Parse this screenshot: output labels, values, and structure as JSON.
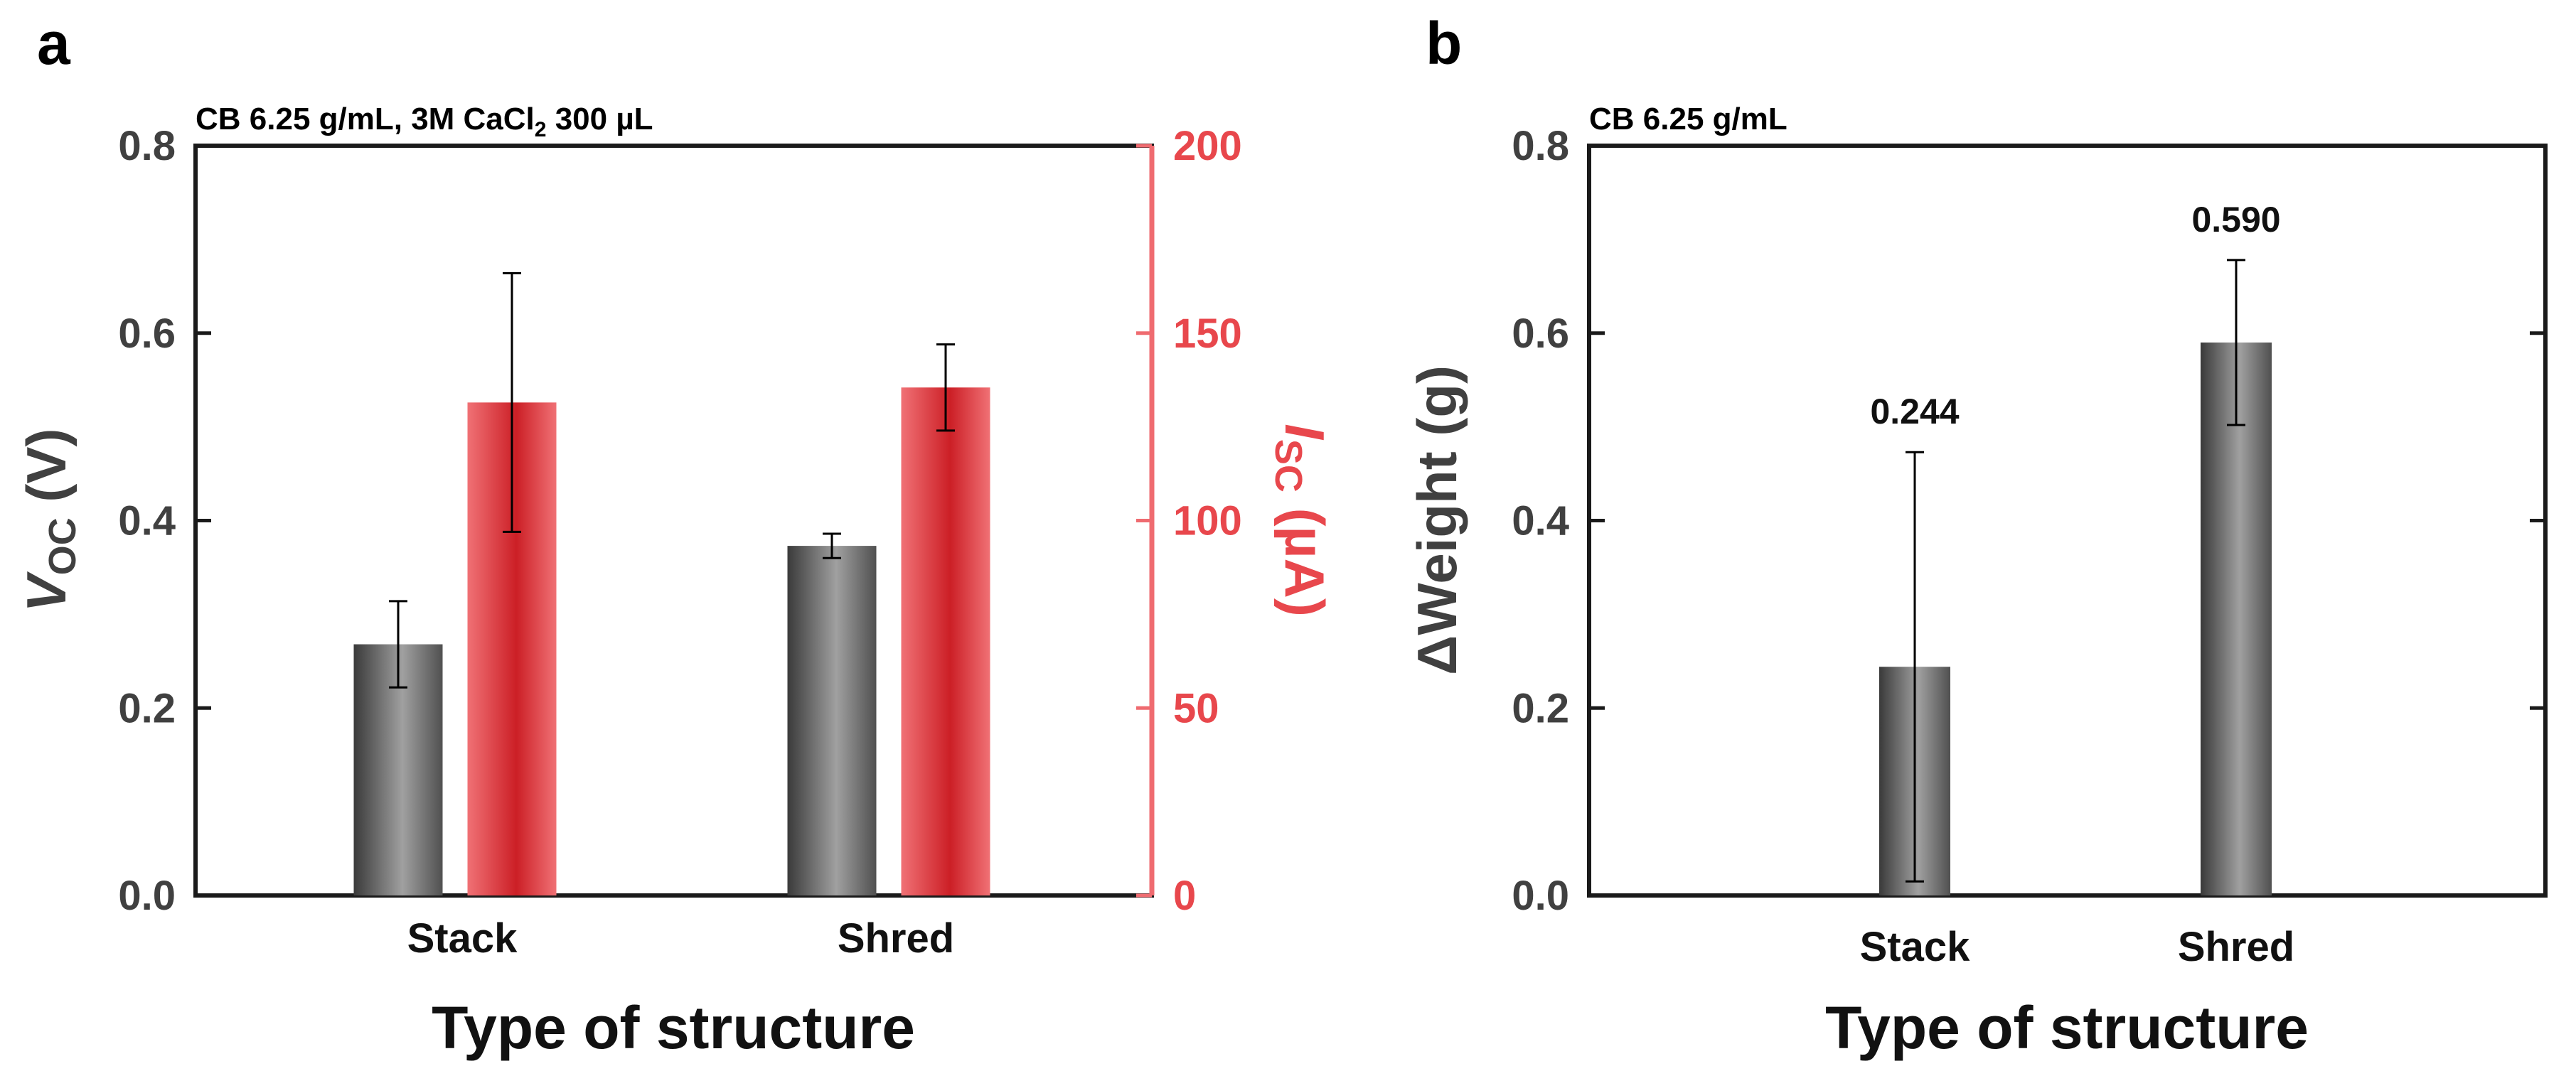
{
  "colors": {
    "gray_dark": "#3a3a3a",
    "gray_light": "#9a9a9a",
    "red_dark": "#cc1f26",
    "red_light": "#ee6a6e",
    "axis": "#1a1a1a",
    "gray_text": "#404040",
    "red_text": "#e8474c",
    "red_axis": "#ef6b70"
  },
  "chart_data": [
    {
      "panel": "a",
      "type": "bar",
      "title": "CB 6.25 g/mL, 3M CaCl",
      "title_sub": "2",
      "title_tail": " 300 µL",
      "categories": [
        "Stack",
        "Shred"
      ],
      "xlabel": "Type of structure",
      "ylabel": {
        "main": "V",
        "sub": "OC",
        "unit": " (V)"
      },
      "ylim": [
        0,
        0.8
      ],
      "yticks": [
        "0.0",
        "0.2",
        "0.4",
        "0.6",
        "0.8"
      ],
      "y2label": {
        "main": "I",
        "sub": "SC",
        "unit": " (µA)"
      },
      "y2lim": [
        0,
        200
      ],
      "y2ticks": [
        "0",
        "50",
        "100",
        "150",
        "200"
      ],
      "series": [
        {
          "name": "Voc",
          "axis": "left",
          "values": [
            0.268,
            0.373
          ],
          "errors": [
            0.046,
            0.013
          ]
        },
        {
          "name": "Isc",
          "axis": "right",
          "values": [
            131.5,
            135.5
          ],
          "errors": [
            34.5,
            11.5
          ]
        }
      ]
    },
    {
      "panel": "b",
      "type": "bar",
      "title": "CB 6.25 g/mL",
      "categories": [
        "Stack",
        "Shred"
      ],
      "xlabel": "Type of structure",
      "ylabel": {
        "main": "ΔWeight (g)"
      },
      "ylim": [
        0,
        0.8
      ],
      "yticks": [
        "0.0",
        "0.2",
        "0.4",
        "0.6",
        "0.8"
      ],
      "series": [
        {
          "name": "ΔWeight",
          "values": [
            0.244,
            0.59
          ],
          "errors": [
            0.229,
            0.088
          ],
          "labels": [
            "0.244",
            "0.590"
          ]
        }
      ]
    }
  ]
}
